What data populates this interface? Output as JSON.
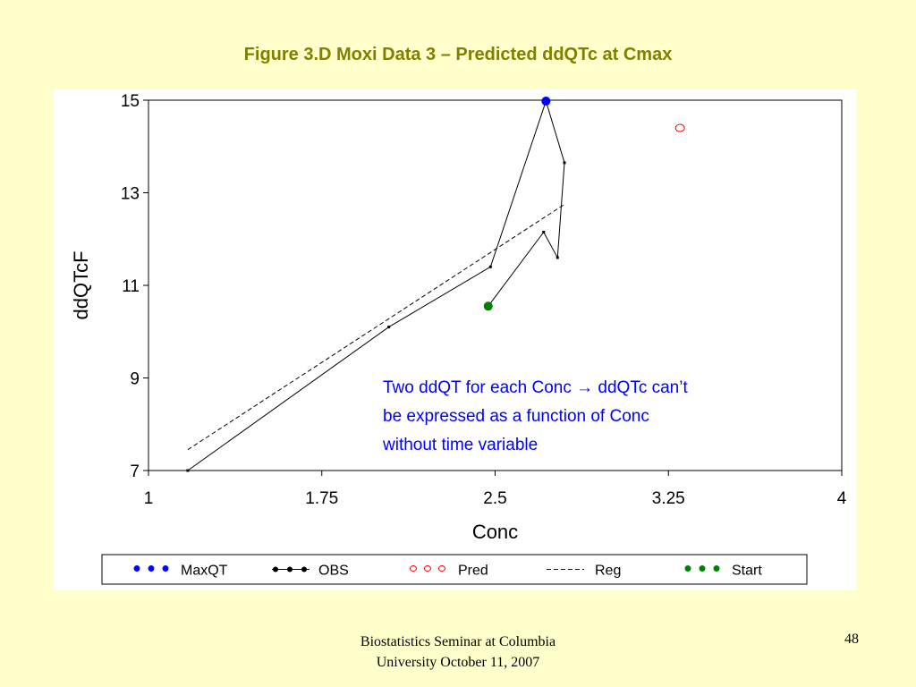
{
  "slide": {
    "title": "Figure 3.D Moxi Data 3 – Predicted ddQTc at Cmax",
    "footer_line1": "Biostatistics Seminar at Columbia",
    "footer_line2": "University October 11, 2007",
    "page_number": "48"
  },
  "annotation": {
    "text": "Two ddQT for each Conc → ddQTc can’t\nbe expressed as  a function of Conc\nwithout time variable",
    "color": "#0000FF"
  },
  "chart_data": {
    "type": "line",
    "title": "",
    "xlabel": "Conc",
    "ylabel": "ddQTcF",
    "xlim": [
      1,
      4
    ],
    "ylim": [
      7,
      15
    ],
    "x_ticks": [
      1,
      1.75,
      2.5,
      3.25,
      4
    ],
    "x_tick_labels": [
      "1",
      "1.75",
      "2.5",
      "3.25",
      "4"
    ],
    "y_ticks": [
      7,
      9,
      11,
      13,
      15
    ],
    "y_tick_labels": [
      "7",
      "9",
      "11",
      "13",
      "15"
    ],
    "grid": false,
    "legend_position": "bottom",
    "series": [
      {
        "name": "MaxQT",
        "kind": "point",
        "color": "#0000FF",
        "points": [
          [
            2.72,
            14.98
          ]
        ]
      },
      {
        "name": "OBS",
        "kind": "line",
        "color": "#000000",
        "points": [
          [
            1.17,
            7.0
          ],
          [
            2.04,
            10.1
          ],
          [
            2.48,
            11.4
          ],
          [
            2.72,
            14.98
          ],
          [
            2.8,
            13.65
          ],
          [
            2.77,
            11.6
          ],
          [
            2.71,
            12.15
          ],
          [
            2.47,
            10.55
          ]
        ]
      },
      {
        "name": "Pred",
        "kind": "point",
        "color": "#FF0000",
        "points": [
          [
            3.3,
            14.4
          ]
        ]
      },
      {
        "name": "Reg",
        "kind": "dashed",
        "color": "#000000",
        "points": [
          [
            1.17,
            7.45
          ],
          [
            2.8,
            12.75
          ]
        ]
      },
      {
        "name": "Start",
        "kind": "point",
        "color": "#008000",
        "points": [
          [
            2.47,
            10.55
          ]
        ]
      }
    ]
  }
}
